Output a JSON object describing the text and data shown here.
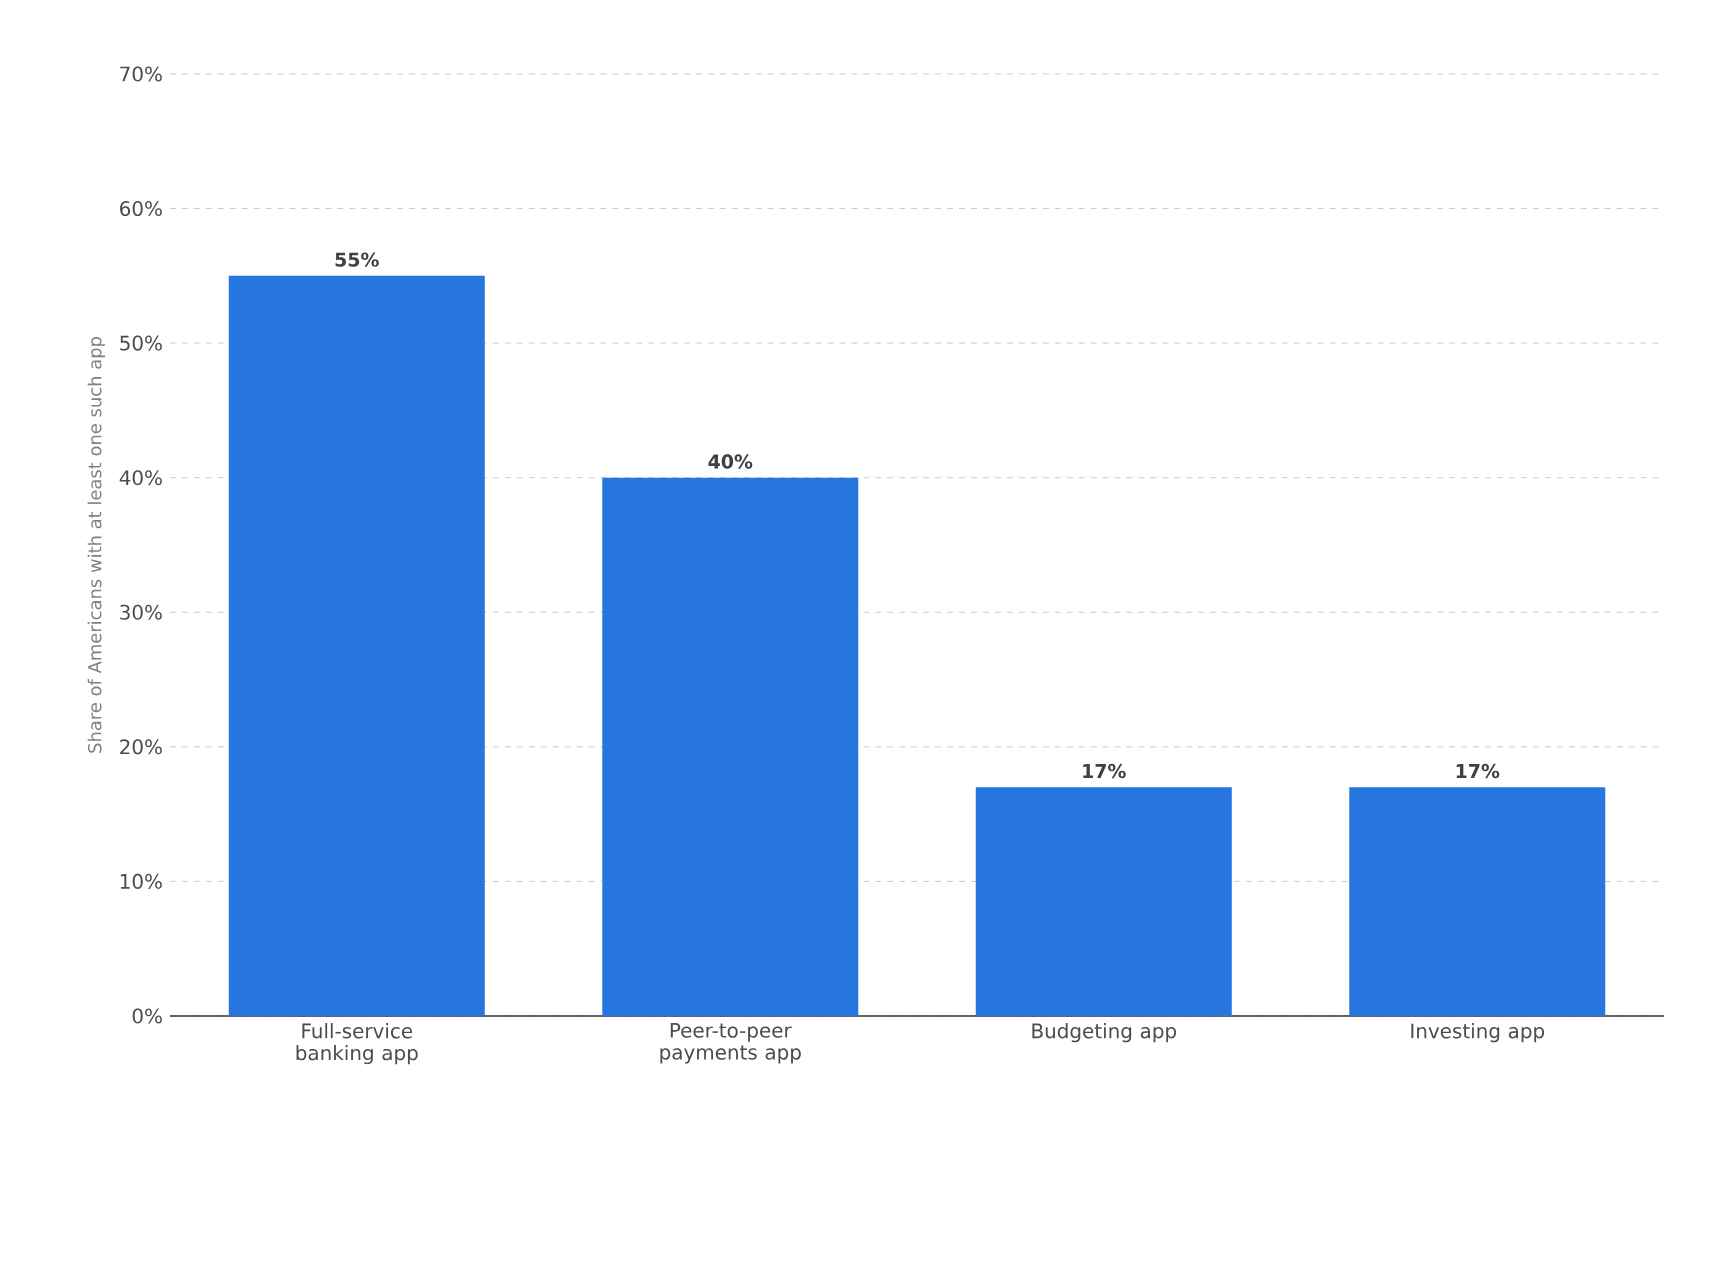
{
  "chart_data": {
    "type": "bar",
    "ylabel": "Share of Americans with at least one such app",
    "categories": [
      "Full-service banking app",
      "Peer-to-peer payments app",
      "Budgeting app",
      "Investing app"
    ],
    "values": [
      55,
      40,
      17,
      17
    ],
    "value_labels": [
      "55%",
      "40%",
      "17%",
      "17%"
    ],
    "color": "#2775de",
    "ylim": [
      0,
      70
    ],
    "yticks": [
      {
        "value": 0,
        "label": "0%"
      },
      {
        "value": 10,
        "label": "10%"
      },
      {
        "value": 20,
        "label": "20%"
      },
      {
        "value": 30,
        "label": "30%"
      },
      {
        "value": 40,
        "label": "40%"
      },
      {
        "value": 50,
        "label": "50%"
      },
      {
        "value": 60,
        "label": "60%"
      },
      {
        "value": 70,
        "label": "70%"
      }
    ],
    "grid": "y"
  }
}
